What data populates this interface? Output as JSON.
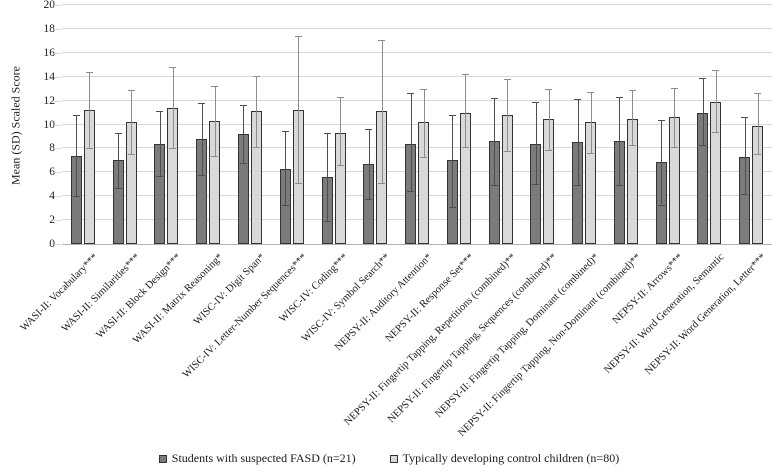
{
  "chart_data": {
    "type": "bar",
    "title": "",
    "xlabel": "",
    "ylabel": "Mean (SD) Scaled Score",
    "ylim": [
      0,
      20
    ],
    "ytick_step": 2,
    "grid": true,
    "error_bars": true,
    "legend_position": "bottom",
    "categories": [
      "WASI-II: Vocabulary***",
      "WASI-II: Similarities***",
      "WASI-II: Block Design***",
      "WASI-II: Matrix Reasoning*",
      "WISC-IV: Digit Span*",
      "WISC-IV: Letter-Number Sequences***",
      "WISC-IV: Coding***",
      "WISC-IV: Symbol Search**",
      "NEPSY-II: Auditory Attention*",
      "NEPSY-II: Response Set***",
      "NEPSY-II: Fingertip Tapping, Repetitions (combined)**",
      "NEPSY-II: Fingertip Tapping, Sequences (combined)**",
      "NEPSY-II: Fingertip Tapping, Dominant (combined)*",
      "NEPSY-II: Fingertip Tapping, Non-Dominant (combined)**",
      "NEPSY-II: Arrows***",
      "NEPSY-II: Word Generation, Semantic",
      "NEPSY-II: Word Generation, Letter***"
    ],
    "series": [
      {
        "name": "Students with suspected FASD (n=21)",
        "fill": "#7b7b7b",
        "border": "#333333",
        "error_color": "#4d4d4d",
        "values": [
          7.4,
          7.0,
          8.4,
          8.8,
          9.2,
          6.3,
          5.6,
          6.7,
          8.4,
          7.0,
          8.6,
          8.4,
          8.5,
          8.6,
          6.9,
          11.0,
          7.3
        ],
        "error_low": [
          4.0,
          4.7,
          5.7,
          5.8,
          6.8,
          3.3,
          1.9,
          3.8,
          4.4,
          3.1,
          4.9,
          5.0,
          4.9,
          4.9,
          3.3,
          8.3,
          4.2
        ],
        "error_high": [
          10.8,
          9.3,
          11.1,
          11.8,
          11.6,
          9.5,
          9.3,
          9.6,
          12.6,
          10.8,
          12.2,
          11.9,
          12.1,
          12.3,
          10.4,
          13.9,
          10.6
        ]
      },
      {
        "name": "Typically developing control children (n=80)",
        "fill": "#d9d9d9",
        "border": "#333333",
        "error_color": "#8c8c8c",
        "values": [
          11.2,
          10.2,
          11.4,
          10.3,
          11.1,
          11.2,
          9.3,
          11.1,
          10.2,
          11.0,
          10.8,
          10.5,
          10.2,
          10.5,
          10.6,
          11.9,
          9.9
        ],
        "error_low": [
          8.0,
          7.5,
          8.0,
          7.4,
          8.1,
          5.1,
          6.6,
          5.1,
          7.3,
          8.1,
          7.8,
          7.9,
          7.6,
          8.3,
          8.1,
          9.4,
          7.5
        ],
        "error_high": [
          14.4,
          12.9,
          14.8,
          13.2,
          14.1,
          17.4,
          12.3,
          17.1,
          13.0,
          14.2,
          13.8,
          13.0,
          12.7,
          12.9,
          13.1,
          14.6,
          12.6
        ]
      }
    ],
    "colors": {
      "gridline": "#d9d9d9",
      "axis_line": "#b3b3b3",
      "fasd_bar": "#7b7b7b",
      "control_bar": "#d9d9d9",
      "bar_border": "#333333"
    }
  }
}
